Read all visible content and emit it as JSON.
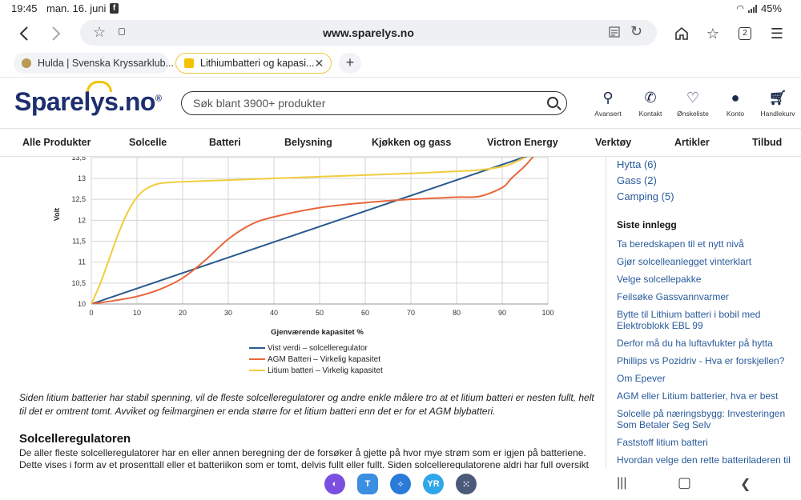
{
  "status_bar": {
    "time": "19:45",
    "date": "man. 16. juni",
    "battery": "45%"
  },
  "browser": {
    "url": "www.sparelys.no",
    "tab_count": "2"
  },
  "tabs": [
    {
      "title": "Hulda | Svenska Kryssarklub...",
      "favicon_color": "#b89a50"
    },
    {
      "title": "Lithiumbatteri og kapasi...",
      "favicon_color": "#f2c400"
    }
  ],
  "site": {
    "logo": "Sparelys.no",
    "logo_reg": "®",
    "search_placeholder": "Søk blant 3900+ produkter",
    "header_icons": [
      {
        "label": "Avansert",
        "icon": "search-icon"
      },
      {
        "label": "Kontakt",
        "icon": "phone-icon"
      },
      {
        "label": "Ønskeliste",
        "icon": "heart-icon"
      },
      {
        "label": "Konto",
        "icon": "user-icon"
      },
      {
        "label": "Handlekurv",
        "icon": "cart-icon"
      }
    ],
    "brand_color": "#1d2f6f",
    "accent_color": "#f2c400"
  },
  "nav": [
    "Alle Produkter",
    "Solcelle",
    "Batteri",
    "Belysning",
    "Kjøkken og gass",
    "Victron Energy",
    "Verktøy",
    "Artikler",
    "Tilbud"
  ],
  "chart_data": {
    "type": "line",
    "xlabel": "Gjenværende kapasitet %",
    "ylabel": "Volt",
    "xlim": [
      0,
      100
    ],
    "ylim": [
      10,
      13.5
    ],
    "x_ticks": [
      0,
      10,
      20,
      30,
      40,
      50,
      60,
      70,
      80,
      90,
      100
    ],
    "y_ticks": [
      "10",
      "10,5",
      "11",
      "11,5",
      "12",
      "12,5",
      "13",
      "13,5"
    ],
    "grid": true,
    "legend_position": "bottom",
    "series": [
      {
        "name": "Vist verdi – solcelleregulator",
        "color": "#2a5b8f",
        "x": [
          0,
          100
        ],
        "y": [
          10,
          13.7
        ]
      },
      {
        "name": "AGM Batteri – Virkelig kapasitet",
        "color": "#e8663a",
        "x": [
          0,
          5,
          10,
          15,
          20,
          25,
          30,
          35,
          40,
          50,
          60,
          70,
          80,
          85,
          90,
          92,
          95,
          97
        ],
        "y": [
          10,
          10.08,
          10.18,
          10.35,
          10.62,
          11.05,
          11.55,
          11.9,
          12.08,
          12.3,
          12.42,
          12.5,
          12.55,
          12.57,
          12.78,
          13.0,
          13.3,
          13.55
        ]
      },
      {
        "name": "Litium batteri – Virkelig kapasitet",
        "color": "#f2cc3c",
        "x": [
          0,
          2,
          4,
          6,
          8,
          10,
          12,
          15,
          20,
          30,
          40,
          50,
          60,
          70,
          80,
          85,
          90,
          92,
          95
        ],
        "y": [
          10,
          10.5,
          11.1,
          11.7,
          12.2,
          12.55,
          12.75,
          12.88,
          12.92,
          12.96,
          13.0,
          13.04,
          13.08,
          13.12,
          13.17,
          13.2,
          13.28,
          13.35,
          13.5
        ]
      }
    ]
  },
  "article": {
    "caption": "Siden litium batterier har stabil spenning, vil de fleste solcelleregulatorer og andre enkle målere tro at et litium batteri er nesten fullt, helt til det er omtrent tomt. Avviket og feilmarginen er enda større for et litium batteri enn det er for et AGM blybatteri.",
    "heading": "Solcelleregulatoren",
    "paragraph": "De aller fleste solcelleregulatorer har en eller annen beregning der de forsøker å gjette på hvor mye strøm som er igjen på batteriene. Dette vises i form av et prosenttall eller et batteriikon som er tomt, delvis fullt eller fullt. Siden solcelleregulatorene aldri har full oversikt over"
  },
  "sidebar": {
    "categories": [
      "Hytta (6)",
      "Gass (2)",
      "Camping (5)"
    ],
    "recent_heading": "Siste innlegg",
    "recent_posts": [
      "Ta beredskapen til et nytt nivå",
      "Gjør solcelleanlegget vinterklart",
      "Velge solcellepakke",
      "Feilsøke Gassvannvarmer",
      "Bytte til Lithium batteri i bobil med Elektroblokk EBL 99",
      "Derfor må du ha luftavfukter på hytta",
      "Phillips vs Pozidriv - Hva er forskjellen?",
      "Om Epever",
      "AGM eller Litium batterier, hva er best",
      "Solcelle på næringsbygg: Investeringen Som Betaler Seg Selv",
      "Faststoff litium batteri",
      "Hvordan velge den rette batteriladeren til"
    ]
  },
  "dock": [
    {
      "name": "internet-app-icon",
      "label": "",
      "color": "#7b4fe0"
    },
    {
      "name": "t-app-icon",
      "label": "T",
      "color": "#3a8fe0"
    },
    {
      "name": "compass-app-icon",
      "label": "",
      "color": "#2a7ad8"
    },
    {
      "name": "yr-app-icon",
      "label": "YR",
      "color": "#2fa6e8"
    },
    {
      "name": "apps-grid-icon",
      "label": "",
      "color": "#4a5a78"
    }
  ]
}
